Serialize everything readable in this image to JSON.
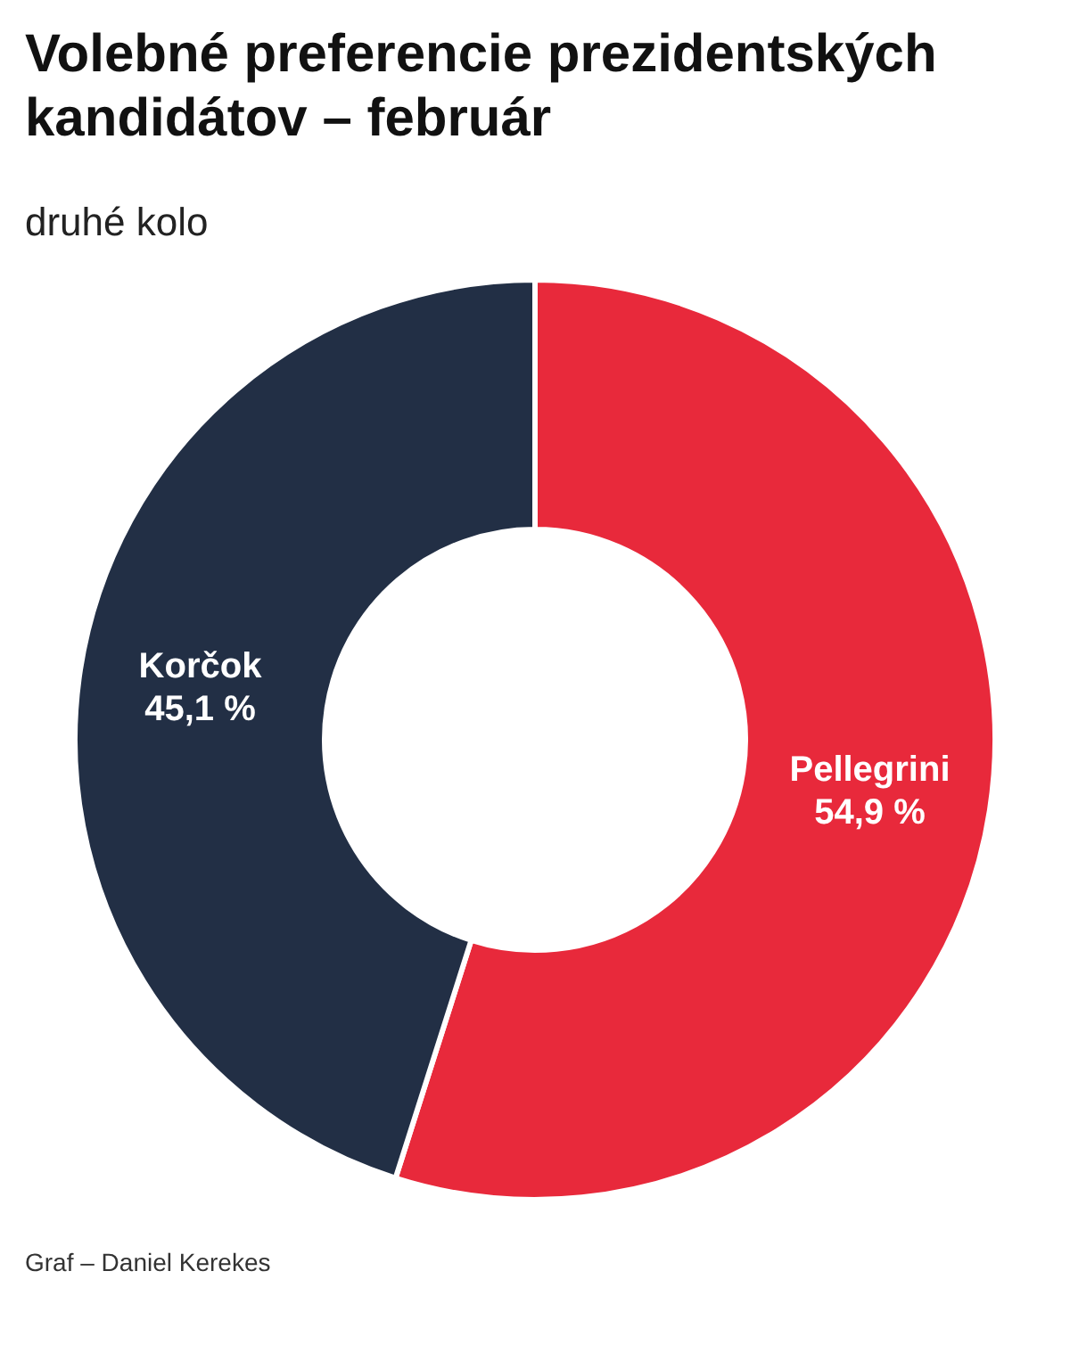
{
  "chart_data": {
    "type": "donut",
    "title": "Volebné preferencie prezidentských kandidátov – február",
    "subtitle": "druhé kolo",
    "categories": [
      "Pellegrini",
      "Korčok"
    ],
    "values": [
      54.9,
      45.1
    ],
    "colors": [
      "#e8293b",
      "#222f45"
    ],
    "value_labels": [
      "54,9 %",
      "45,1 %"
    ],
    "annotations": [
      "Graf – Daniel Kerekes"
    ]
  }
}
